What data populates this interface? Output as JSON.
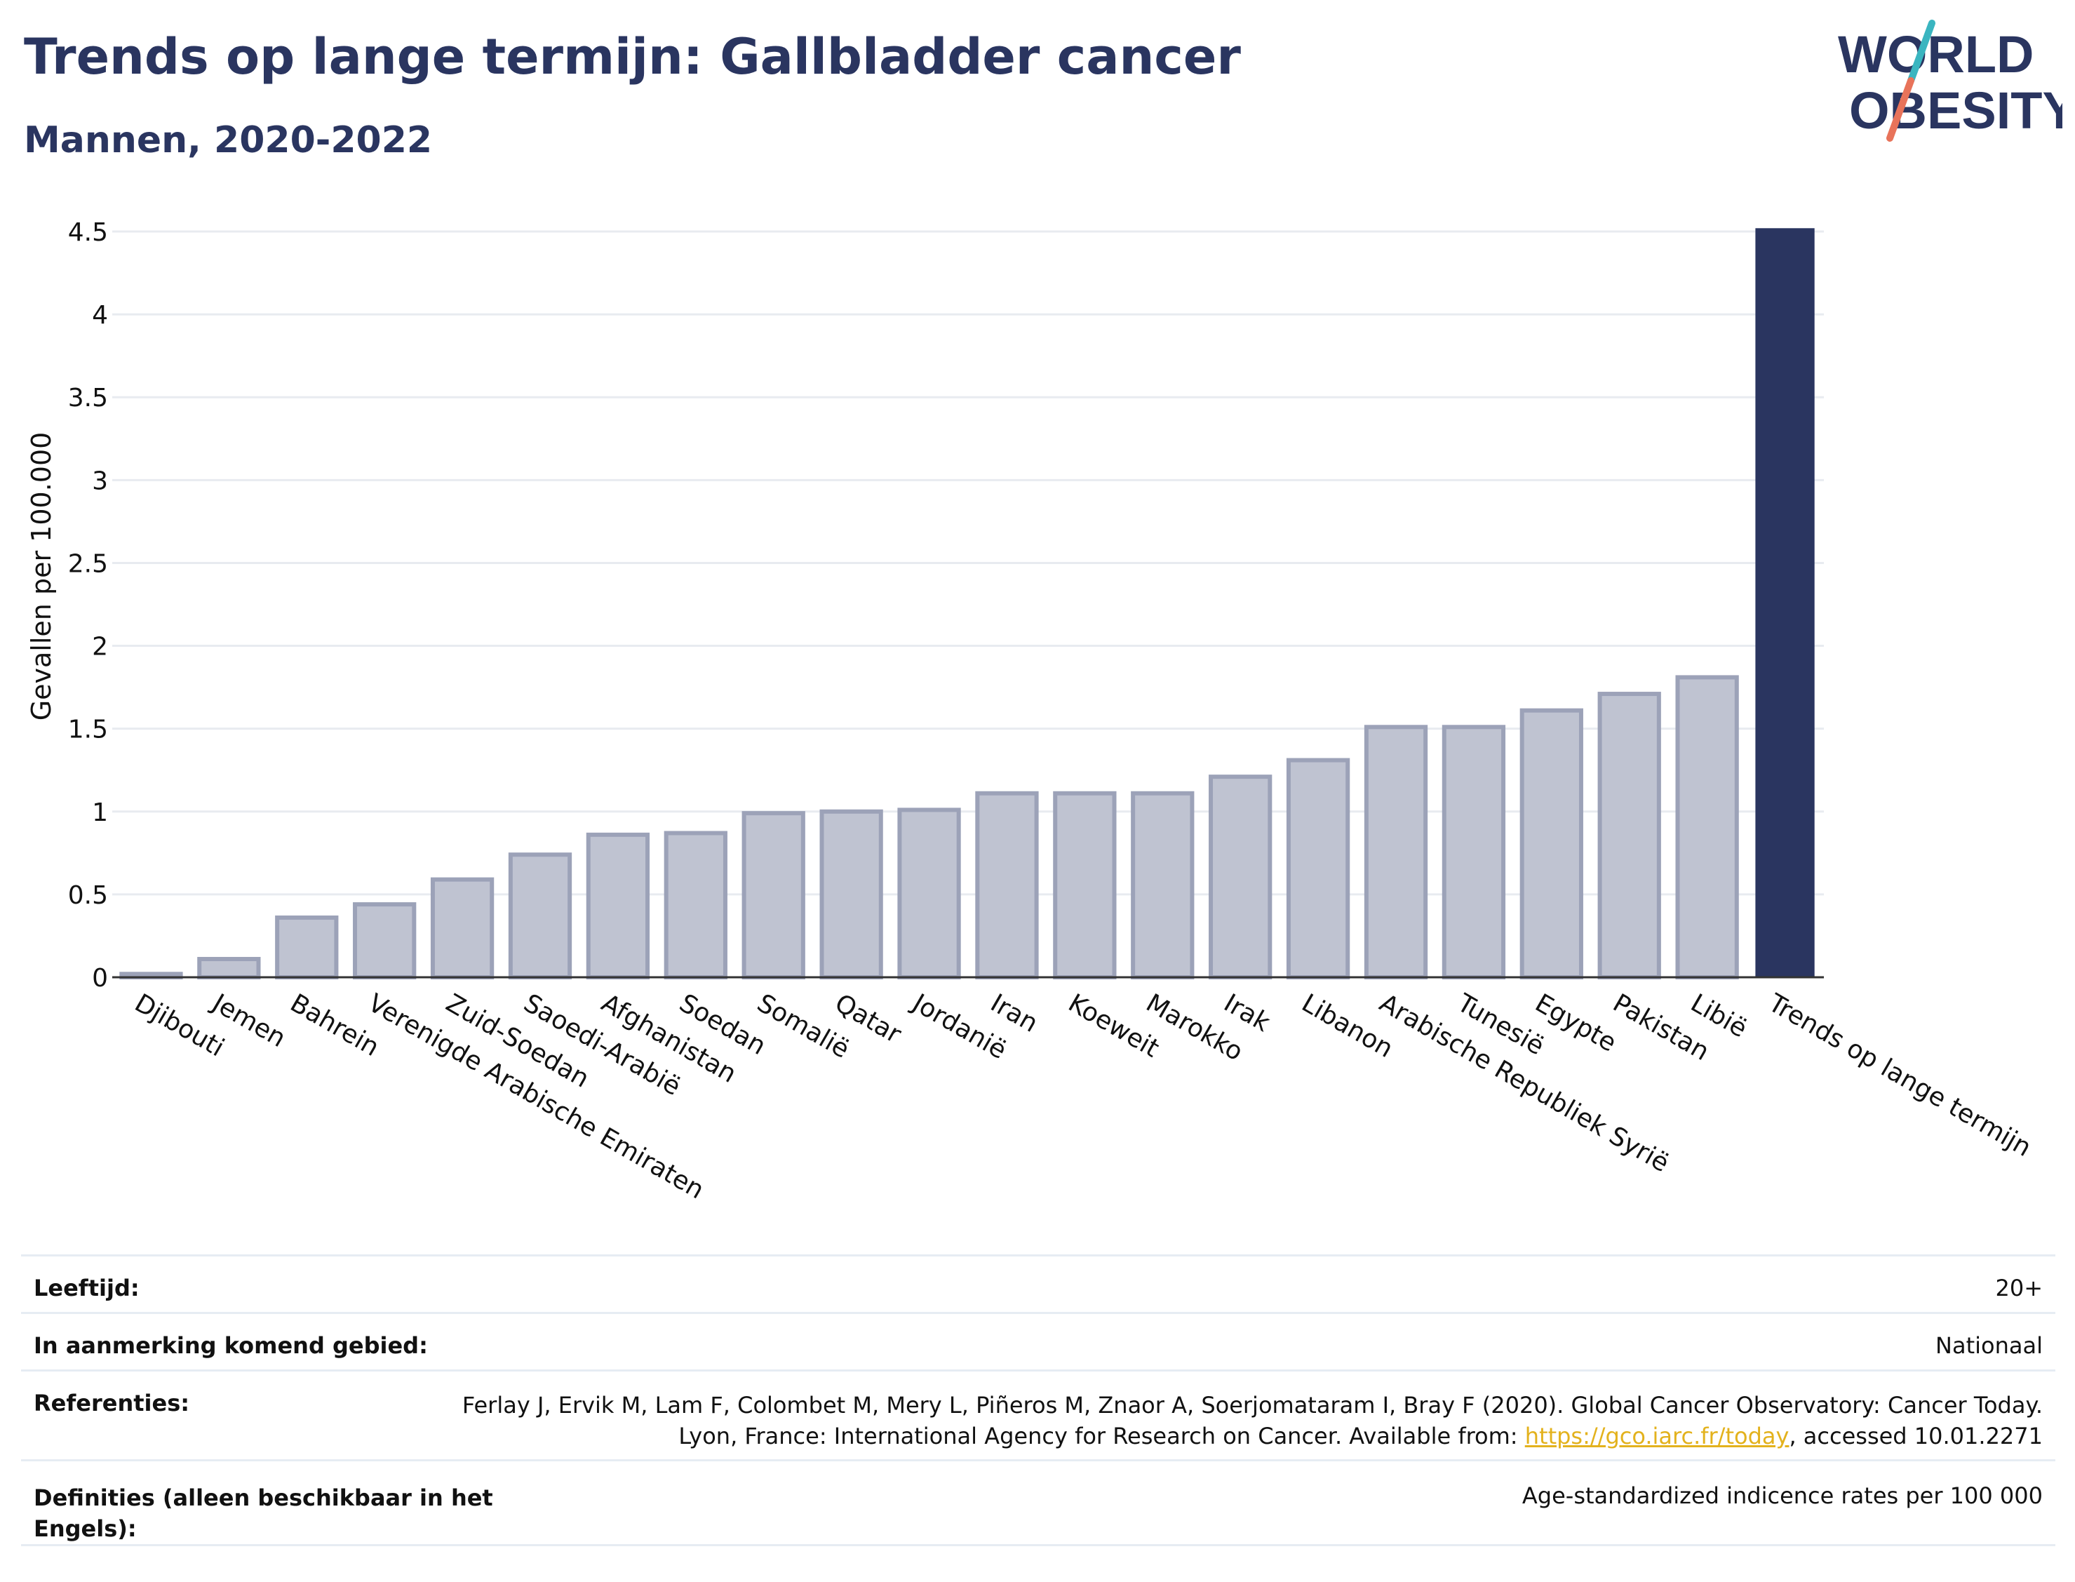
{
  "header": {
    "title": "Trends op lange termijn: Gallbladder cancer",
    "subtitle": "Mannen, 2020-2022"
  },
  "logo": {
    "line1": "WORLD",
    "line2": "OBESITY",
    "colors": {
      "text": "#2a3560",
      "slash_top": "#3ab5c0",
      "slash_bottom": "#e8735a"
    }
  },
  "chart_data": {
    "type": "bar",
    "ylabel": "Gevallen per 100.000",
    "xlabel": "",
    "ylim": [
      0,
      4.5
    ],
    "yticks": [
      0,
      0.5,
      1,
      1.5,
      2,
      2.5,
      3,
      3.5,
      4,
      4.5
    ],
    "ytick_labels": [
      "0",
      "0.5",
      "1",
      "1.5",
      "2",
      "2.5",
      "3",
      "3.5",
      "4",
      "4.5"
    ],
    "grid": true,
    "categories": [
      "Djibouti",
      "Jemen",
      "Bahrein",
      "Verenigde Arabische Emiraten",
      "Zuid-Soedan",
      "Saoedi-Arabië",
      "Afghanistan",
      "Soedan",
      "Somalië",
      "Qatar",
      "Jordanië",
      "Iran",
      "Koeweit",
      "Marokko",
      "Irak",
      "Libanon",
      "Arabische Republiek Syrië",
      "Tunesië",
      "Egypte",
      "Pakistan",
      "Libië",
      "Trends op lange termijn"
    ],
    "values": [
      0.02,
      0.11,
      0.36,
      0.44,
      0.59,
      0.74,
      0.86,
      0.87,
      0.99,
      1.0,
      1.01,
      1.11,
      1.11,
      1.11,
      1.21,
      1.31,
      1.51,
      1.51,
      1.61,
      1.71,
      1.81,
      4.52
    ],
    "highlight_category": "Trends op lange termijn",
    "colors": {
      "bar": "#bfc3d1",
      "bar_edge": "#9ca2b8",
      "highlight": "#2a3560",
      "grid": "#e8ebf0",
      "axis": "#333333"
    }
  },
  "info": {
    "age": {
      "label": "Leeftijd:",
      "value": "20+"
    },
    "area": {
      "label": "In aanmerking komend gebied:",
      "value": "Nationaal"
    },
    "references": {
      "label": "Referenties:",
      "text_before": "Ferlay J, Ervik M, Lam F, Colombet M, Mery L, Piñeros M, Znaor A, Soerjomataram I, Bray F (2020). Global Cancer Observatory: Cancer Today. Lyon, France: International Agency for Research on Cancer. Available from: ",
      "link": "https://gco.iarc.fr/today",
      "text_after": ", accessed 10.01.2271"
    },
    "definitions": {
      "label": "Definities (alleen beschikbaar in het Engels):",
      "value": "Age-standardized indicence rates per 100 000"
    }
  }
}
